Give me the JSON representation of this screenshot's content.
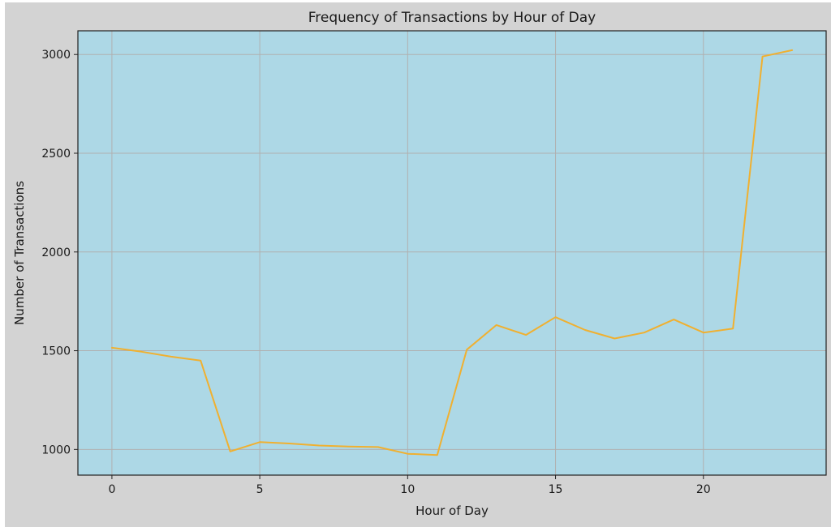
{
  "chart_data": {
    "type": "line",
    "title": "Frequency of Transactions by Hour of Day",
    "xlabel": "Hour of Day",
    "ylabel": "Number of Transactions",
    "xlim": [
      -1.15,
      24.15
    ],
    "ylim": [
      870,
      3120
    ],
    "xticks": [
      0,
      5,
      10,
      15,
      20
    ],
    "xtick_labels": [
      "0",
      "5",
      "10",
      "15",
      "20"
    ],
    "yticks": [
      1000,
      1500,
      2000,
      2500,
      3000
    ],
    "ytick_labels": [
      "1000",
      "1500",
      "2000",
      "2500",
      "3000"
    ],
    "grid": true,
    "series": [
      {
        "x": [
          0,
          1,
          2,
          3,
          4,
          5,
          6,
          7,
          8,
          9,
          10,
          11,
          12,
          13,
          14,
          15,
          16,
          17,
          18,
          19,
          20,
          21,
          22,
          23
        ],
        "values": [
          1515,
          1495,
          1470,
          1450,
          990,
          1037,
          1030,
          1020,
          1015,
          1012,
          978,
          972,
          1505,
          1630,
          1580,
          1670,
          1605,
          1562,
          1592,
          1658,
          1592,
          1612,
          2990,
          3022
        ],
        "color": "#f0b030"
      }
    ],
    "colors": {
      "plot_background": "#add8e6",
      "figure_background": "#d3d3d3",
      "grid": "#b0b0b0",
      "line": "#f0b030"
    }
  }
}
